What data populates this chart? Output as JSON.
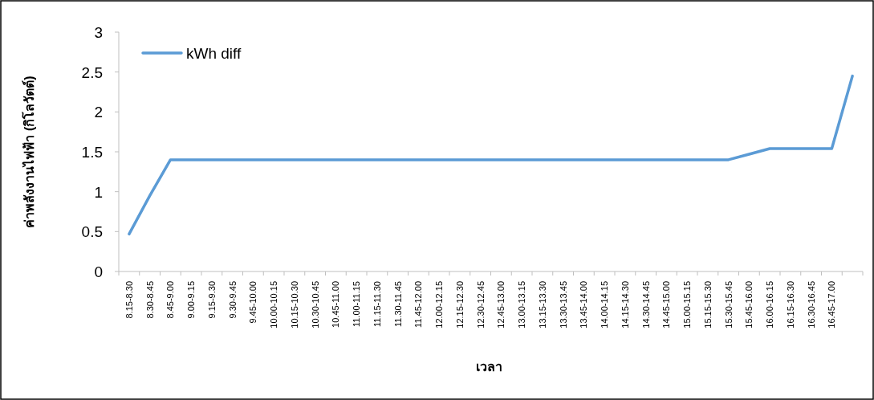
{
  "chart_data": {
    "type": "line",
    "xlabel": "เวลา",
    "ylabel": "ค่าพลังงานไฟฟ้า (กิโลวัตต์)",
    "legend": "top left",
    "categories": [
      "8.15-8.30",
      "8.30-8.45",
      "8.45-9.00",
      "9.00-9.15",
      "9.15-9.30",
      "9.30-9.45",
      "9.45-10.00",
      "10.00-10.15",
      "10.15-10.30",
      "10.30-10.45",
      "10.45-11.00",
      "11.00-11.15",
      "11.15-11.30",
      "11.30-11.45",
      "11.45-12.00",
      "12.00-12.15",
      "12.15-12.30",
      "12.30-12.45",
      "12.45-13.00",
      "13.00-13.15",
      "13.15-13.30",
      "13.30-13.45",
      "13.45-14.00",
      "14.00-14.15",
      "14.15-14.30",
      "14.30-14.45",
      "14.45-15.00",
      "15.00-15.15",
      "15.15-15.30",
      "15.30-15.45",
      "15.45-16.00",
      "16.00-16.15",
      "16.15-16.30",
      "16.30-16.45",
      "16.45-17.00",
      null
    ],
    "series": [
      {
        "name": "kWh diff",
        "color": "#5b9bd5",
        "values": [
          0.47,
          0.95,
          1.4,
          1.4,
          1.4,
          1.4,
          1.4,
          1.4,
          1.4,
          1.4,
          1.4,
          1.4,
          1.4,
          1.4,
          1.4,
          1.4,
          1.4,
          1.4,
          1.4,
          1.4,
          1.4,
          1.4,
          1.4,
          1.4,
          1.4,
          1.4,
          1.4,
          1.4,
          1.4,
          1.4,
          1.47,
          1.54,
          1.54,
          1.54,
          1.54,
          2.45
        ]
      }
    ],
    "ylim": [
      0,
      3
    ],
    "yticks": [
      0,
      0.5,
      1,
      1.5,
      2,
      2.5,
      3
    ]
  }
}
